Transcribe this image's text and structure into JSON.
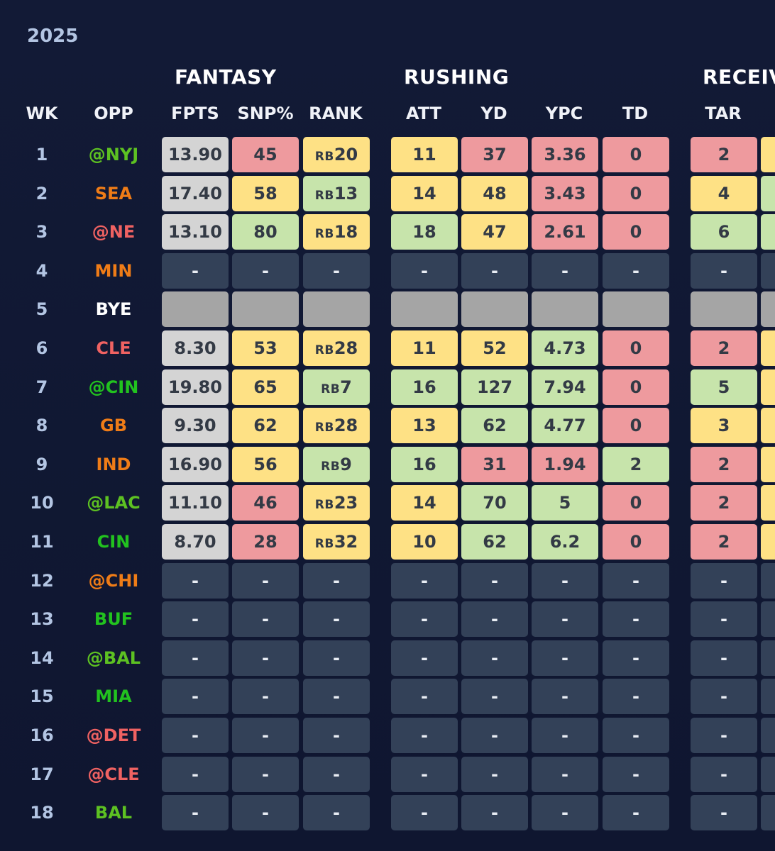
{
  "season": "2025",
  "groups": [
    "FANTASY",
    "RUSHING",
    "RECEIV"
  ],
  "headers": [
    "WK",
    "OPP",
    "FPTS",
    "SNP%",
    "RANK",
    "ATT",
    "YD",
    "YPC",
    "TD",
    "TAR"
  ],
  "colors": {
    "red": "#ee9a9e",
    "yellow": "#fee185",
    "green": "#c7e4ab",
    "fpts_gray": "#d4d4d4",
    "empty": "#334158",
    "bye": "#a5a5a5",
    "opp_green": "#22c21f",
    "opp_lime": "#5dc122",
    "opp_orange": "#ef7c17",
    "opp_red": "#f06262"
  },
  "rows": [
    {
      "wk": "1",
      "opp": "@NYJ",
      "opp_color": "lime",
      "cells": [
        [
          "13.90",
          "fpts"
        ],
        [
          "45",
          "red"
        ],
        [
          "RB|20",
          "yellow"
        ],
        [
          "11",
          "yellow"
        ],
        [
          "37",
          "red"
        ],
        [
          "3.36",
          "red"
        ],
        [
          "0",
          "red"
        ],
        [
          "2",
          "red"
        ]
      ],
      "edge": "yellow"
    },
    {
      "wk": "2",
      "opp": "SEA",
      "opp_color": "orange",
      "cells": [
        [
          "17.40",
          "fpts"
        ],
        [
          "58",
          "yellow"
        ],
        [
          "RB|13",
          "green"
        ],
        [
          "14",
          "yellow"
        ],
        [
          "48",
          "yellow"
        ],
        [
          "3.43",
          "red"
        ],
        [
          "0",
          "red"
        ],
        [
          "4",
          "yellow"
        ]
      ],
      "edge": "green"
    },
    {
      "wk": "3",
      "opp": "@NE",
      "opp_color": "red",
      "cells": [
        [
          "13.10",
          "fpts"
        ],
        [
          "80",
          "green"
        ],
        [
          "RB|18",
          "yellow"
        ],
        [
          "18",
          "green"
        ],
        [
          "47",
          "yellow"
        ],
        [
          "2.61",
          "red"
        ],
        [
          "0",
          "red"
        ],
        [
          "6",
          "green"
        ]
      ],
      "edge": "green"
    },
    {
      "wk": "4",
      "opp": "MIN",
      "opp_color": "orange",
      "cells": [
        [
          "-",
          "empty"
        ],
        [
          "-",
          "empty"
        ],
        [
          "-",
          "empty"
        ],
        [
          "-",
          "empty"
        ],
        [
          "-",
          "empty"
        ],
        [
          "-",
          "empty"
        ],
        [
          "-",
          "empty"
        ],
        [
          "-",
          "empty"
        ]
      ],
      "edge": "empty"
    },
    {
      "wk": "5",
      "opp": "BYE",
      "opp_color": "white",
      "cells": [
        [
          "",
          "bye"
        ],
        [
          "",
          "bye"
        ],
        [
          "",
          "bye"
        ],
        [
          "",
          "bye"
        ],
        [
          "",
          "bye"
        ],
        [
          "",
          "bye"
        ],
        [
          "",
          "bye"
        ],
        [
          "",
          "bye"
        ]
      ],
      "edge": "bye"
    },
    {
      "wk": "6",
      "opp": "CLE",
      "opp_color": "red",
      "cells": [
        [
          "8.30",
          "fpts"
        ],
        [
          "53",
          "yellow"
        ],
        [
          "RB|28",
          "yellow"
        ],
        [
          "11",
          "yellow"
        ],
        [
          "52",
          "yellow"
        ],
        [
          "4.73",
          "green"
        ],
        [
          "0",
          "red"
        ],
        [
          "2",
          "red"
        ]
      ],
      "edge": "yellow"
    },
    {
      "wk": "7",
      "opp": "@CIN",
      "opp_color": "green",
      "cells": [
        [
          "19.80",
          "fpts"
        ],
        [
          "65",
          "yellow"
        ],
        [
          "RB|7",
          "green"
        ],
        [
          "16",
          "green"
        ],
        [
          "127",
          "green"
        ],
        [
          "7.94",
          "green"
        ],
        [
          "0",
          "red"
        ],
        [
          "5",
          "green"
        ]
      ],
      "edge": "yellow"
    },
    {
      "wk": "8",
      "opp": "GB",
      "opp_color": "orange",
      "cells": [
        [
          "9.30",
          "fpts"
        ],
        [
          "62",
          "yellow"
        ],
        [
          "RB|28",
          "yellow"
        ],
        [
          "13",
          "yellow"
        ],
        [
          "62",
          "green"
        ],
        [
          "4.77",
          "green"
        ],
        [
          "0",
          "red"
        ],
        [
          "3",
          "yellow"
        ]
      ],
      "edge": "yellow"
    },
    {
      "wk": "9",
      "opp": "IND",
      "opp_color": "orange",
      "cells": [
        [
          "16.90",
          "fpts"
        ],
        [
          "56",
          "yellow"
        ],
        [
          "RB|9",
          "green"
        ],
        [
          "16",
          "green"
        ],
        [
          "31",
          "red"
        ],
        [
          "1.94",
          "red"
        ],
        [
          "2",
          "green"
        ],
        [
          "2",
          "red"
        ]
      ],
      "edge": "yellow"
    },
    {
      "wk": "10",
      "opp": "@LAC",
      "opp_color": "lime",
      "cells": [
        [
          "11.10",
          "fpts"
        ],
        [
          "46",
          "red"
        ],
        [
          "RB|23",
          "yellow"
        ],
        [
          "14",
          "yellow"
        ],
        [
          "70",
          "green"
        ],
        [
          "5",
          "green"
        ],
        [
          "0",
          "red"
        ],
        [
          "2",
          "red"
        ]
      ],
      "edge": "yellow"
    },
    {
      "wk": "11",
      "opp": "CIN",
      "opp_color": "green",
      "cells": [
        [
          "8.70",
          "fpts"
        ],
        [
          "28",
          "red"
        ],
        [
          "RB|32",
          "yellow"
        ],
        [
          "10",
          "yellow"
        ],
        [
          "62",
          "green"
        ],
        [
          "6.2",
          "green"
        ],
        [
          "0",
          "red"
        ],
        [
          "2",
          "red"
        ]
      ],
      "edge": "yellow"
    },
    {
      "wk": "12",
      "opp": "@CHI",
      "opp_color": "orange",
      "cells": [
        [
          "-",
          "empty"
        ],
        [
          "-",
          "empty"
        ],
        [
          "-",
          "empty"
        ],
        [
          "-",
          "empty"
        ],
        [
          "-",
          "empty"
        ],
        [
          "-",
          "empty"
        ],
        [
          "-",
          "empty"
        ],
        [
          "-",
          "empty"
        ]
      ],
      "edge": "empty"
    },
    {
      "wk": "13",
      "opp": "BUF",
      "opp_color": "green",
      "cells": [
        [
          "-",
          "empty"
        ],
        [
          "-",
          "empty"
        ],
        [
          "-",
          "empty"
        ],
        [
          "-",
          "empty"
        ],
        [
          "-",
          "empty"
        ],
        [
          "-",
          "empty"
        ],
        [
          "-",
          "empty"
        ],
        [
          "-",
          "empty"
        ]
      ],
      "edge": "empty"
    },
    {
      "wk": "14",
      "opp": "@BAL",
      "opp_color": "lime",
      "cells": [
        [
          "-",
          "empty"
        ],
        [
          "-",
          "empty"
        ],
        [
          "-",
          "empty"
        ],
        [
          "-",
          "empty"
        ],
        [
          "-",
          "empty"
        ],
        [
          "-",
          "empty"
        ],
        [
          "-",
          "empty"
        ],
        [
          "-",
          "empty"
        ]
      ],
      "edge": "empty"
    },
    {
      "wk": "15",
      "opp": "MIA",
      "opp_color": "green",
      "cells": [
        [
          "-",
          "empty"
        ],
        [
          "-",
          "empty"
        ],
        [
          "-",
          "empty"
        ],
        [
          "-",
          "empty"
        ],
        [
          "-",
          "empty"
        ],
        [
          "-",
          "empty"
        ],
        [
          "-",
          "empty"
        ],
        [
          "-",
          "empty"
        ]
      ],
      "edge": "empty"
    },
    {
      "wk": "16",
      "opp": "@DET",
      "opp_color": "red",
      "cells": [
        [
          "-",
          "empty"
        ],
        [
          "-",
          "empty"
        ],
        [
          "-",
          "empty"
        ],
        [
          "-",
          "empty"
        ],
        [
          "-",
          "empty"
        ],
        [
          "-",
          "empty"
        ],
        [
          "-",
          "empty"
        ],
        [
          "-",
          "empty"
        ]
      ],
      "edge": "empty"
    },
    {
      "wk": "17",
      "opp": "@CLE",
      "opp_color": "red",
      "cells": [
        [
          "-",
          "empty"
        ],
        [
          "-",
          "empty"
        ],
        [
          "-",
          "empty"
        ],
        [
          "-",
          "empty"
        ],
        [
          "-",
          "empty"
        ],
        [
          "-",
          "empty"
        ],
        [
          "-",
          "empty"
        ],
        [
          "-",
          "empty"
        ]
      ],
      "edge": "empty"
    },
    {
      "wk": "18",
      "opp": "BAL",
      "opp_color": "lime",
      "cells": [
        [
          "-",
          "empty"
        ],
        [
          "-",
          "empty"
        ],
        [
          "-",
          "empty"
        ],
        [
          "-",
          "empty"
        ],
        [
          "-",
          "empty"
        ],
        [
          "-",
          "empty"
        ],
        [
          "-",
          "empty"
        ],
        [
          "-",
          "empty"
        ]
      ],
      "edge": "empty"
    }
  ]
}
